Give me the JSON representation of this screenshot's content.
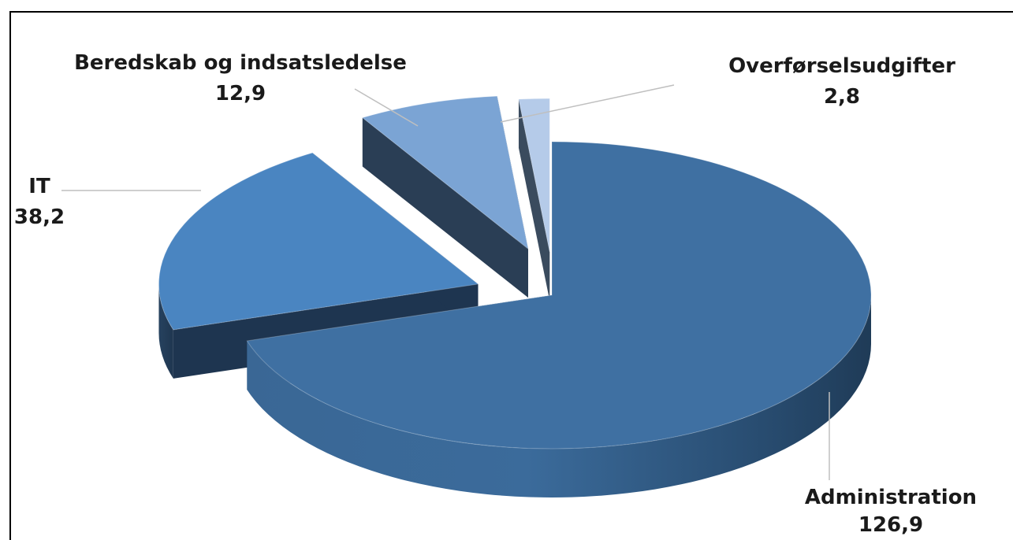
{
  "chart_data": {
    "type": "pie",
    "variant": "3d-exploded",
    "title": "",
    "slices": [
      {
        "label": "Administration",
        "value_label": "126,9",
        "value": 126.9,
        "color": "#3f70a2"
      },
      {
        "label": "IT",
        "value_label": "38,2",
        "value": 38.2,
        "color": "#4a85c1"
      },
      {
        "label": "Beredskab og indsatsledelse",
        "value_label": "12,9",
        "value": 12.9,
        "color": "#7ba4d4"
      },
      {
        "label": "Overførselsudgifter",
        "value_label": "2,8",
        "value": 2.8,
        "color": "#b5cbe9"
      }
    ],
    "legend": "none",
    "grid": false
  }
}
